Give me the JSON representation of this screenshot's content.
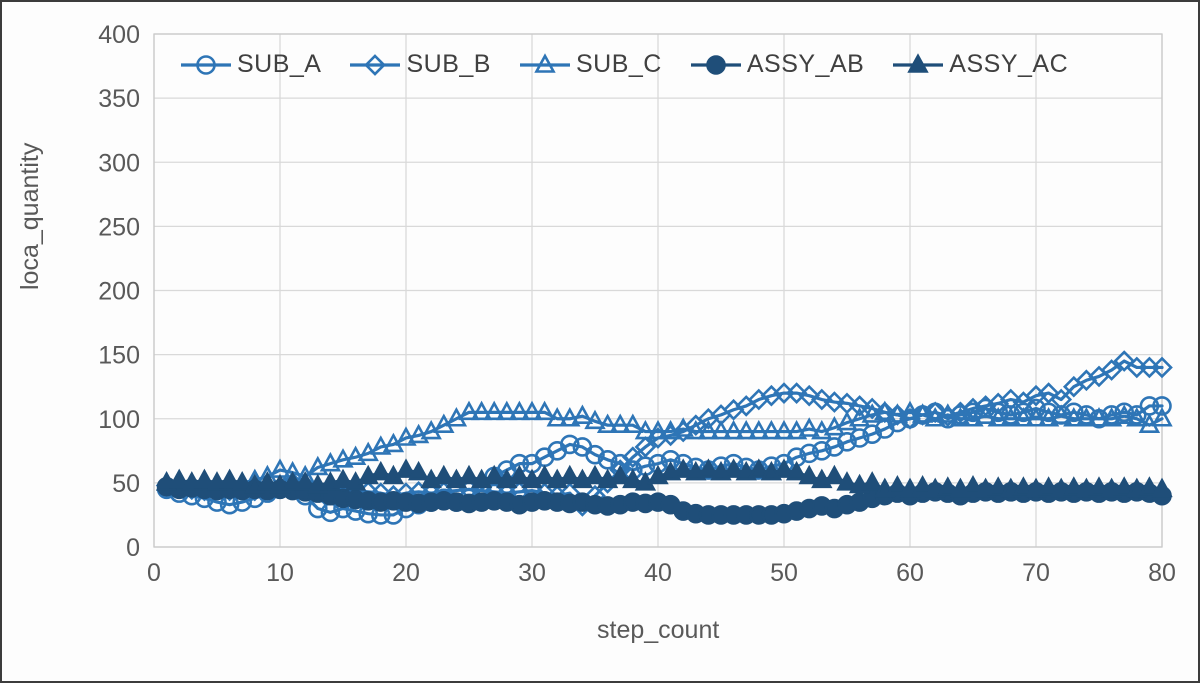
{
  "window": {
    "background": "#fdfdfd",
    "border_color": "#3c3c3c"
  },
  "chart_data": {
    "type": "line",
    "title": "",
    "xlabel": "step_count",
    "ylabel": "loca_quantity",
    "xlim": [
      0,
      80
    ],
    "ylim": [
      0,
      400
    ],
    "xticks": [
      0,
      10,
      20,
      30,
      40,
      50,
      60,
      70,
      80
    ],
    "yticks": [
      0,
      50,
      100,
      150,
      200,
      250,
      300,
      350,
      400
    ],
    "grid": true,
    "legend_position": "top",
    "colors": {
      "light_series": "#2E75B6",
      "dark_series": "#1F4E79",
      "gridline": "#D9D9D9",
      "plot_border": "#C9C9C9",
      "tick_text": "#595959",
      "legend_text": "#404040"
    },
    "x": [
      1,
      2,
      3,
      4,
      5,
      6,
      7,
      8,
      9,
      10,
      11,
      12,
      13,
      14,
      15,
      16,
      17,
      18,
      19,
      20,
      21,
      22,
      23,
      24,
      25,
      26,
      27,
      28,
      29,
      30,
      31,
      32,
      33,
      34,
      35,
      36,
      37,
      38,
      39,
      40,
      41,
      42,
      43,
      44,
      45,
      46,
      47,
      48,
      49,
      50,
      51,
      52,
      53,
      54,
      55,
      56,
      57,
      58,
      59,
      60,
      61,
      62,
      63,
      64,
      65,
      66,
      67,
      68,
      69,
      70,
      71,
      72,
      73,
      74,
      75,
      76,
      77,
      78,
      79,
      80
    ],
    "series": [
      {
        "name": "SUB_A",
        "marker": "circle",
        "fill": "open",
        "color": "#2E75B6",
        "values": [
          45,
          42,
          40,
          38,
          35,
          33,
          35,
          38,
          42,
          45,
          45,
          40,
          30,
          27,
          30,
          28,
          26,
          25,
          25,
          30,
          33,
          35,
          38,
          35,
          38,
          45,
          55,
          60,
          65,
          65,
          70,
          75,
          80,
          78,
          72,
          68,
          65,
          60,
          63,
          65,
          68,
          65,
          62,
          60,
          63,
          65,
          62,
          60,
          63,
          65,
          70,
          73,
          75,
          78,
          82,
          85,
          88,
          92,
          97,
          100,
          103,
          105,
          100,
          103,
          105,
          108,
          105,
          103,
          105,
          108,
          105,
          103,
          105,
          103,
          100,
          103,
          105,
          103,
          110,
          110
        ]
      },
      {
        "name": "SUB_B",
        "marker": "diamond",
        "fill": "open",
        "color": "#2E75B6",
        "values": [
          48,
          46,
          45,
          44,
          45,
          44,
          45,
          44,
          45,
          46,
          50,
          48,
          45,
          46,
          45,
          44,
          43,
          42,
          40,
          42,
          43,
          42,
          43,
          44,
          45,
          44,
          43,
          42,
          43,
          44,
          42,
          40,
          42,
          32,
          40,
          50,
          60,
          70,
          78,
          85,
          87,
          90,
          95,
          100,
          103,
          107,
          110,
          115,
          118,
          120,
          120,
          118,
          115,
          113,
          112,
          110,
          108,
          105,
          103,
          100,
          103,
          105,
          102,
          105,
          108,
          110,
          112,
          115,
          113,
          118,
          120,
          115,
          125,
          130,
          133,
          138,
          145,
          140,
          140,
          140
        ]
      },
      {
        "name": "SUB_C",
        "marker": "triangle",
        "fill": "open",
        "color": "#2E75B6",
        "values": [
          50,
          48,
          47,
          48,
          47,
          48,
          50,
          52,
          55,
          60,
          58,
          55,
          62,
          65,
          68,
          70,
          73,
          78,
          80,
          85,
          87,
          90,
          95,
          100,
          105,
          105,
          105,
          105,
          105,
          105,
          105,
          100,
          100,
          102,
          98,
          95,
          95,
          95,
          90,
          90,
          90,
          92,
          90,
          90,
          90,
          90,
          90,
          90,
          90,
          90,
          90,
          92,
          90,
          93,
          97,
          100,
          103,
          105,
          103,
          105,
          103,
          100,
          103,
          100,
          100,
          102,
          100,
          100,
          100,
          100,
          100,
          102,
          100,
          100,
          100,
          100,
          102,
          100,
          95,
          100
        ]
      },
      {
        "name": "ASSY_AB",
        "marker": "circle",
        "fill": "solid",
        "color": "#1F4E79",
        "values": [
          47,
          45,
          46,
          45,
          44,
          45,
          44,
          45,
          44,
          45,
          44,
          43,
          42,
          40,
          38,
          37,
          36,
          35,
          36,
          35,
          34,
          35,
          36,
          35,
          34,
          35,
          36,
          35,
          33,
          35,
          36,
          35,
          34,
          35,
          33,
          32,
          33,
          35,
          34,
          35,
          33,
          28,
          26,
          25,
          25,
          25,
          25,
          25,
          25,
          26,
          28,
          30,
          32,
          30,
          33,
          35,
          38,
          40,
          42,
          40,
          42,
          43,
          42,
          40,
          42,
          43,
          42,
          43,
          42,
          43,
          42,
          43,
          42,
          43,
          42,
          43,
          42,
          43,
          42,
          40
        ]
      },
      {
        "name": "ASSY_AC",
        "marker": "triangle",
        "fill": "solid",
        "color": "#1F4E79",
        "values": [
          50,
          52,
          50,
          52,
          50,
          52,
          50,
          48,
          50,
          48,
          50,
          50,
          48,
          50,
          52,
          50,
          55,
          58,
          55,
          60,
          58,
          52,
          55,
          52,
          55,
          52,
          55,
          52,
          55,
          52,
          55,
          52,
          55,
          52,
          55,
          52,
          55,
          52,
          50,
          55,
          58,
          60,
          58,
          60,
          58,
          60,
          58,
          60,
          58,
          60,
          58,
          55,
          52,
          55,
          50,
          48,
          50,
          45,
          47,
          45,
          47,
          45,
          46,
          45,
          47,
          45,
          46,
          45,
          46,
          45,
          46,
          45,
          46,
          45,
          46,
          45,
          46,
          45,
          46,
          45
        ]
      }
    ]
  }
}
